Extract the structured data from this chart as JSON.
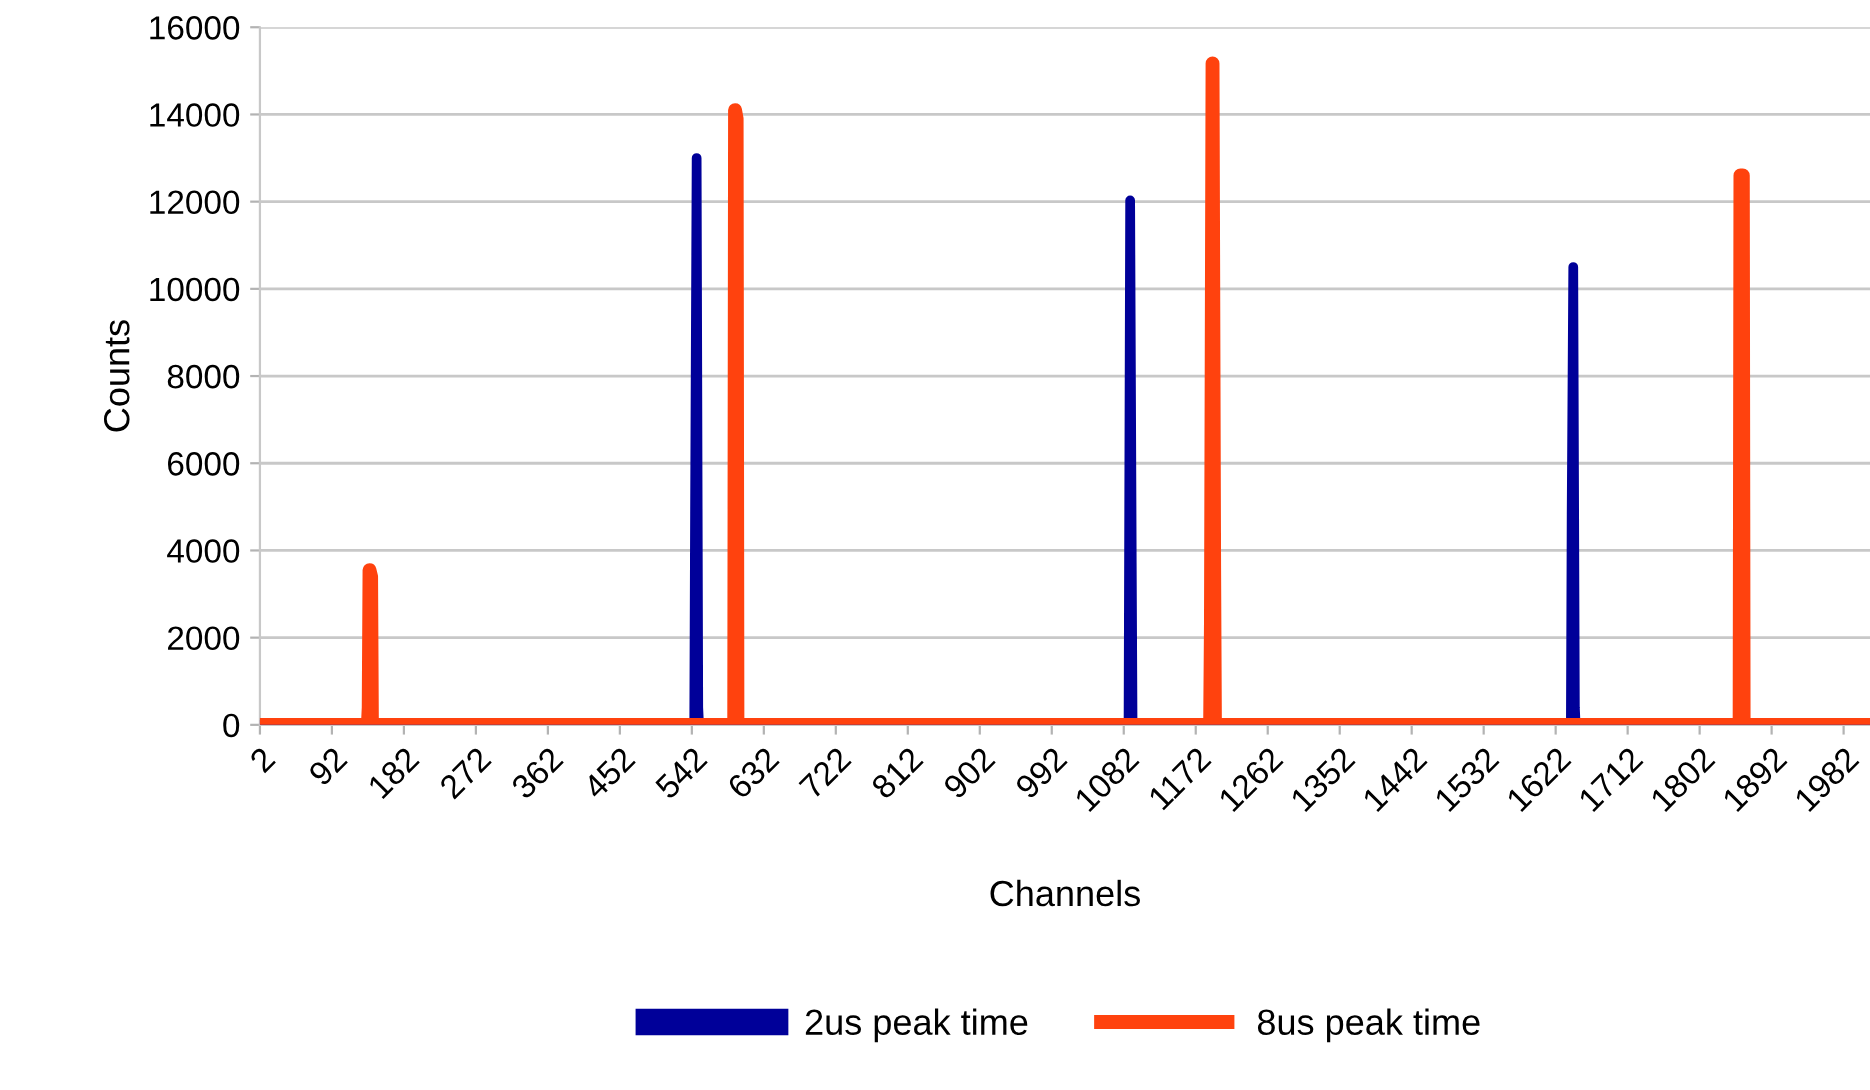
{
  "chart_data": {
    "type": "line",
    "xlabel": "Channels",
    "ylabel": "Counts",
    "xlim": [
      2,
      2015
    ],
    "xticks": [
      2,
      92,
      182,
      272,
      362,
      452,
      542,
      632,
      722,
      812,
      902,
      992,
      1082,
      1172,
      1262,
      1352,
      1442,
      1532,
      1622,
      1712,
      1802,
      1892,
      1982
    ],
    "ylim": [
      0,
      16000
    ],
    "yticks": [
      0,
      2000,
      4000,
      6000,
      8000,
      10000,
      12000,
      14000,
      16000
    ],
    "grid": "y",
    "legend": "bottom",
    "marker": "none",
    "line_style": "solid",
    "series": [
      {
        "name": "2us peak time",
        "color": "#000099",
        "x": [
          2,
          545,
          546,
          548,
          550,
          551,
          1088,
          1090,
          1092,
          1093,
          1641,
          1642,
          1644,
          1646,
          1647,
          2015
        ],
        "values": [
          0,
          0,
          4840,
          13000,
          400,
          0,
          0,
          12030,
          3700,
          0,
          0,
          4840,
          10500,
          400,
          0,
          0
        ]
      },
      {
        "name": "8us peak time",
        "color": "#ff420e",
        "x": [
          2,
          137,
          138,
          139,
          141,
          142,
          595,
          596,
          598,
          599,
          1190,
          1191,
          1193,
          1195,
          1196,
          1852,
          1853,
          1856,
          1857,
          2015
        ],
        "values": [
          0,
          0,
          400,
          3550,
          3400,
          0,
          0,
          14100,
          13900,
          0,
          0,
          2350,
          15170,
          3640,
          0,
          0,
          12600,
          12600,
          0,
          0
        ]
      }
    ]
  }
}
